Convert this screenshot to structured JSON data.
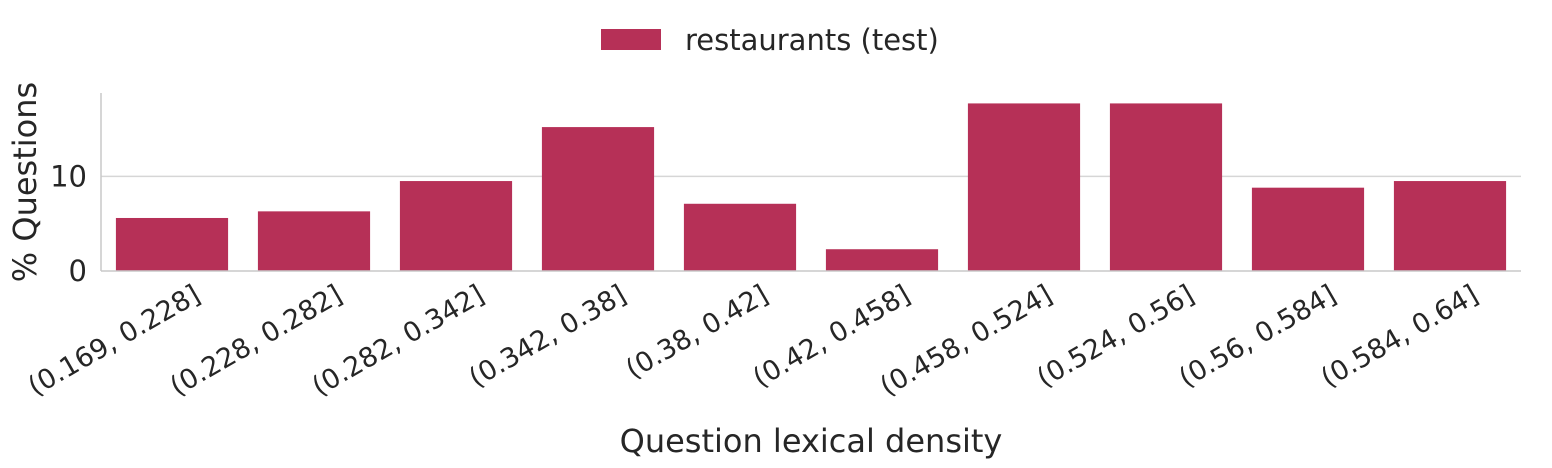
{
  "chart_data": {
    "type": "bar",
    "categories": [
      "(0.169, 0.228]",
      "(0.228, 0.282]",
      "(0.282, 0.342]",
      "(0.342, 0.38]",
      "(0.38, 0.42]",
      "(0.42, 0.458]",
      "(0.458, 0.524]",
      "(0.524, 0.56]",
      "(0.56, 0.584]",
      "(0.584, 0.64]"
    ],
    "series": [
      {
        "name": "restaurants (test)",
        "color": "#b63057",
        "values": [
          5.6,
          6.3,
          9.5,
          15.2,
          7.1,
          2.3,
          17.7,
          17.7,
          8.8,
          9.5
        ]
      }
    ],
    "title": "",
    "xlabel": "Question lexical density",
    "ylabel": "% Questions",
    "ylim": [
      0,
      18.8
    ],
    "yticks": [
      0,
      10
    ],
    "grid": "horizontal",
    "legend": "top-center"
  }
}
